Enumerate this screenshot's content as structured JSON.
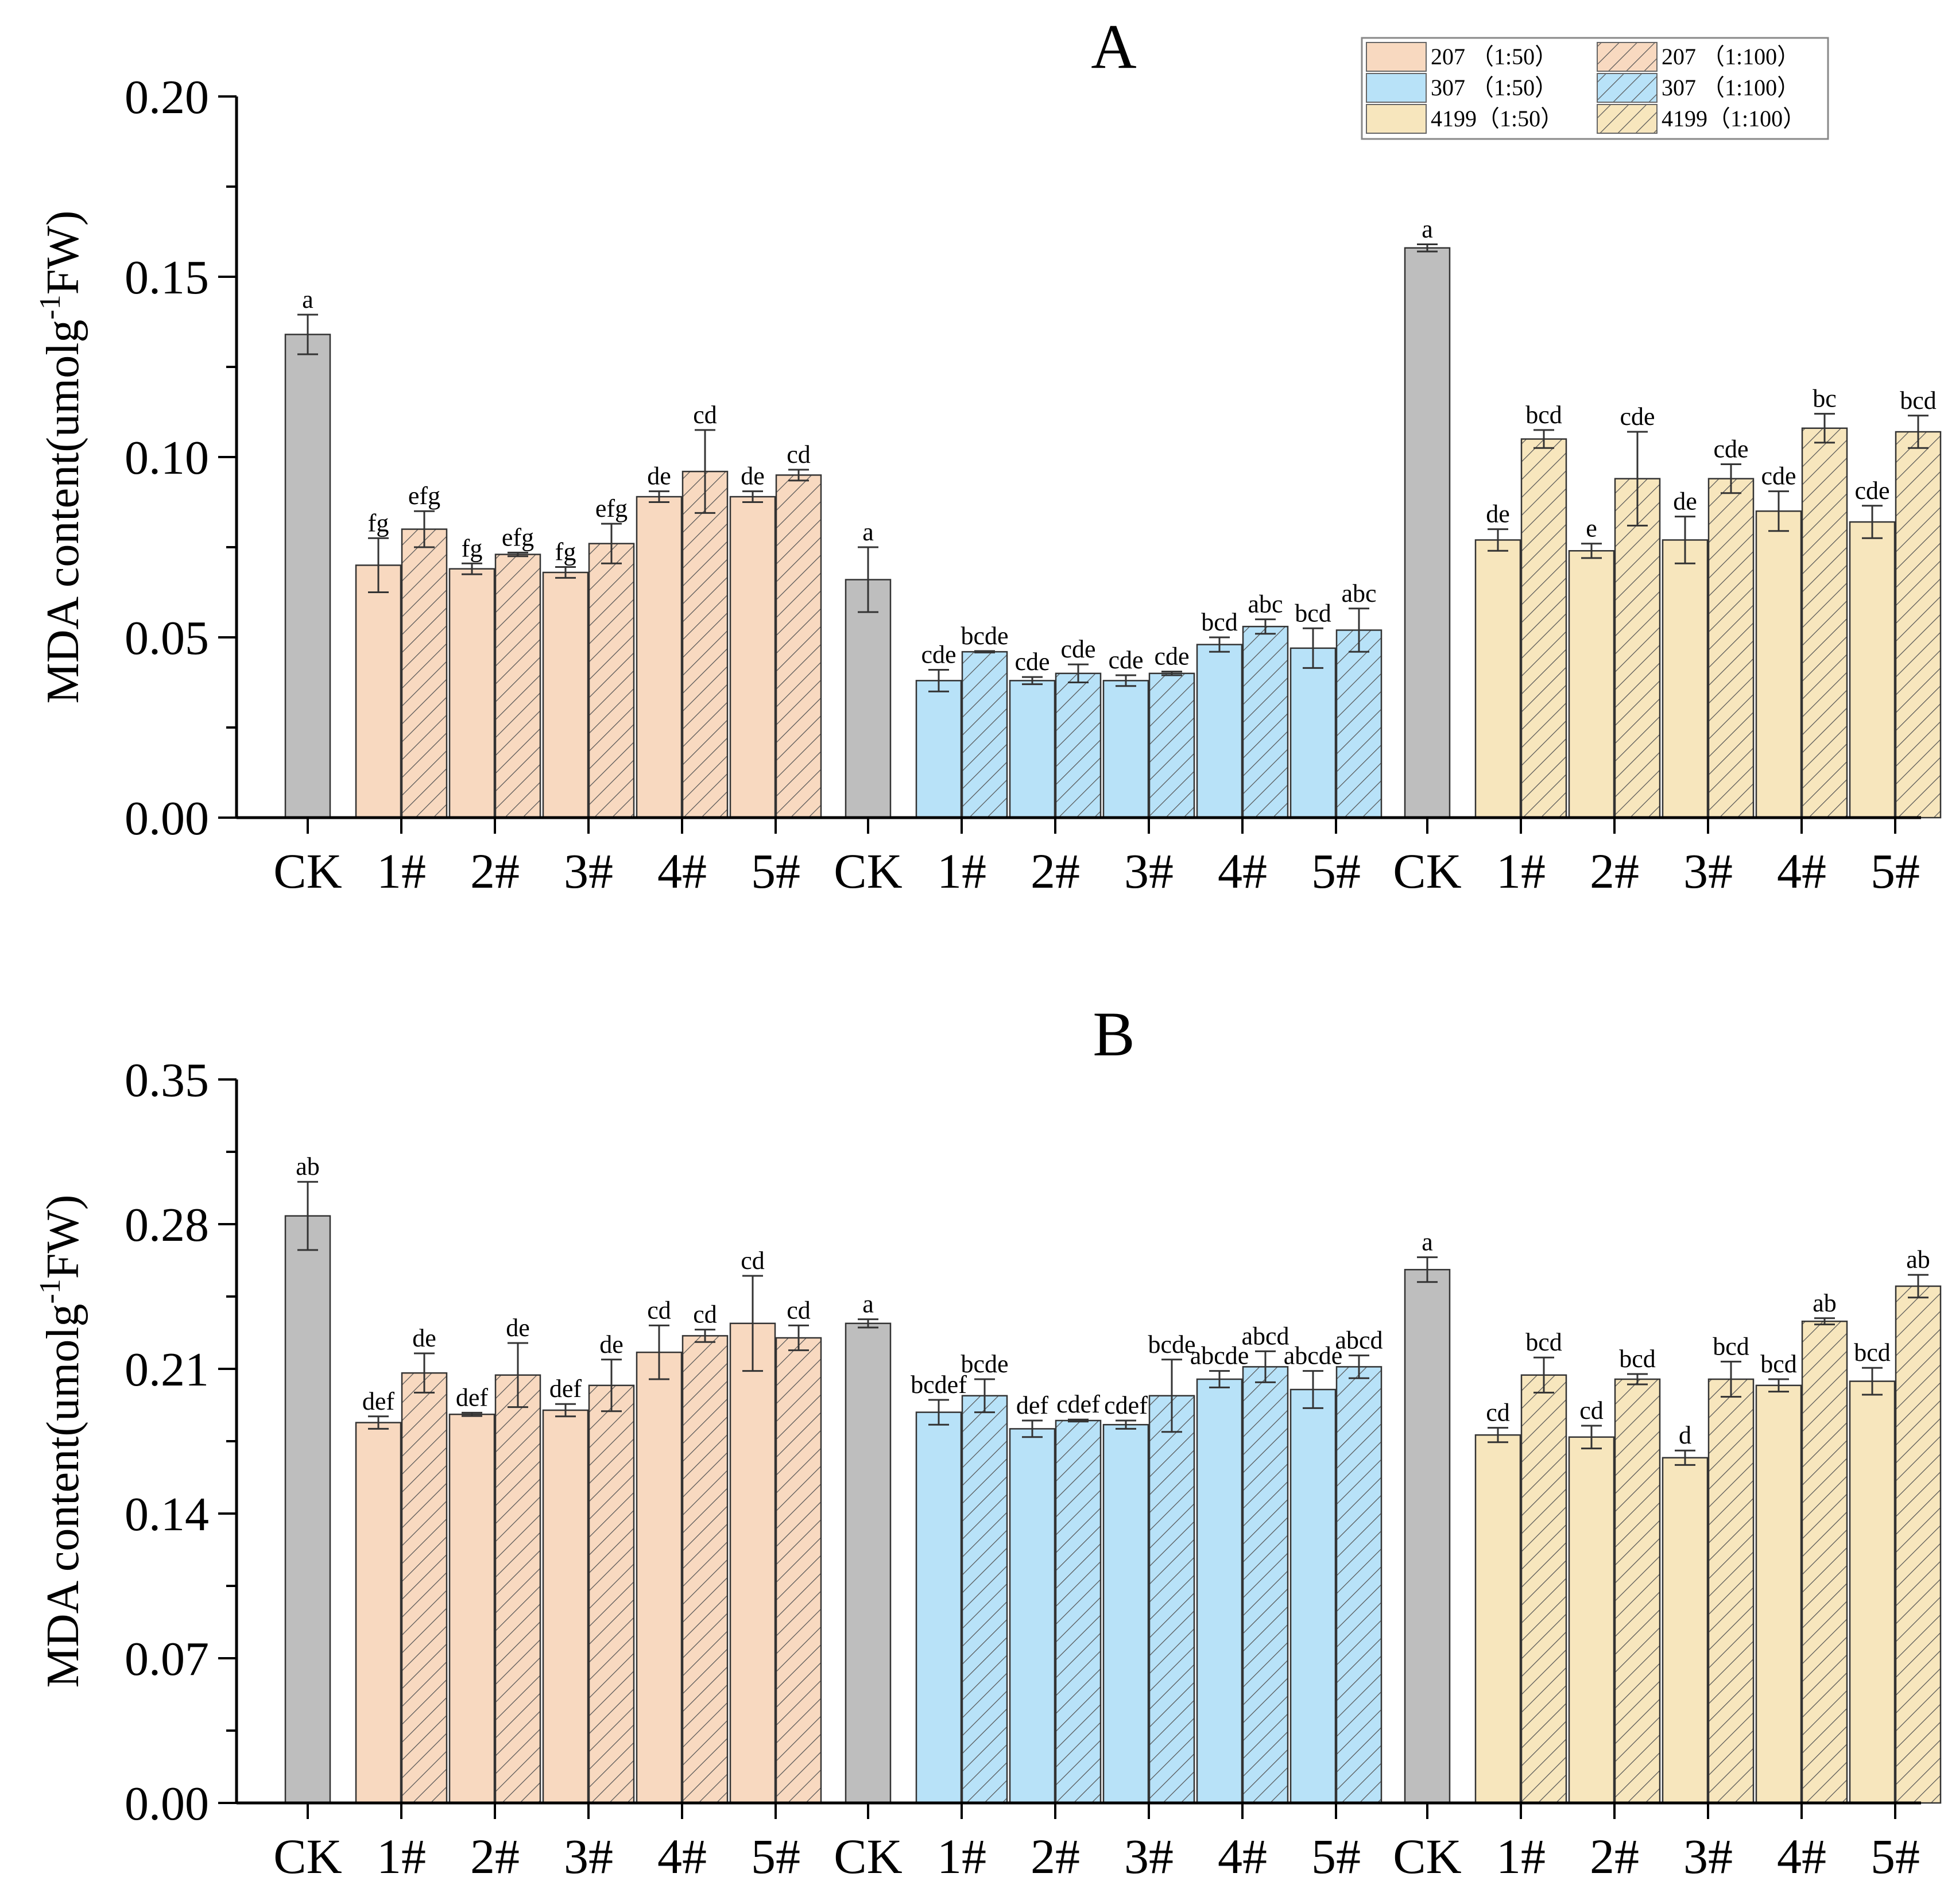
{
  "colors": {
    "ck": "#bebebe",
    "207": "#f8d9c0",
    "307": "#b8e2f8",
    "4199": "#f7e6bd",
    "hatch_line": "#555555",
    "bar_edge": "#333333"
  },
  "legend": {
    "items": [
      {
        "label": "207  （1:50）",
        "color": "207",
        "hatched": false
      },
      {
        "label": "207    （1:100）",
        "color": "207",
        "hatched": true
      },
      {
        "label": "307  （1:50）",
        "color": "307",
        "hatched": false
      },
      {
        "label": "307    （1:100）",
        "color": "307",
        "hatched": true
      },
      {
        "label": "4199（1:50）",
        "color": "4199",
        "hatched": false
      },
      {
        "label": "4199（1:100）",
        "color": "4199",
        "hatched": true
      }
    ]
  },
  "chart_data": [
    {
      "type": "bar",
      "title": "A",
      "ylabel_main": "MDA content(umolg",
      "ylabel_sup": "-1",
      "ylabel_end": "FW)",
      "ylim": [
        0,
        0.2
      ],
      "yticks": [
        "0.00",
        "0.05",
        "0.10",
        "0.15",
        "0.20"
      ],
      "categories": [
        "CK",
        "1#",
        "2#",
        "3#",
        "4#",
        "5#"
      ],
      "groups": [
        {
          "name": "207",
          "color": "207",
          "ck": {
            "value": 0.134,
            "err": 0.0055,
            "label": "a"
          },
          "low": [
            {
              "value": 0.07,
              "err": 0.0075,
              "label": "fg"
            },
            {
              "value": 0.069,
              "err": 0.0015,
              "label": "fg"
            },
            {
              "value": 0.068,
              "err": 0.0015,
              "label": "fg"
            },
            {
              "value": 0.089,
              "err": 0.0015,
              "label": "de"
            },
            {
              "value": 0.089,
              "err": 0.0015,
              "label": "de"
            }
          ],
          "high": [
            {
              "value": 0.08,
              "err": 0.005,
              "label": "efg"
            },
            {
              "value": 0.073,
              "err": 0.0005,
              "label": "efg"
            },
            {
              "value": 0.076,
              "err": 0.0055,
              "label": "efg"
            },
            {
              "value": 0.096,
              "err": 0.0115,
              "label": "cd"
            },
            {
              "value": 0.095,
              "err": 0.0015,
              "label": "cd"
            }
          ]
        },
        {
          "name": "307",
          "color": "307",
          "ck": {
            "value": 0.066,
            "err": 0.009,
            "label": "a"
          },
          "low": [
            {
              "value": 0.038,
              "err": 0.003,
              "label": "cde"
            },
            {
              "value": 0.038,
              "err": 0.001,
              "label": "cde"
            },
            {
              "value": 0.038,
              "err": 0.0015,
              "label": "cde"
            },
            {
              "value": 0.048,
              "err": 0.002,
              "label": "bcd"
            },
            {
              "value": 0.047,
              "err": 0.0055,
              "label": "bcd"
            }
          ],
          "high": [
            {
              "value": 0.046,
              "err": 0.0002,
              "label": "bcde"
            },
            {
              "value": 0.04,
              "err": 0.0025,
              "label": "cde"
            },
            {
              "value": 0.04,
              "err": 0.0005,
              "label": "cde"
            },
            {
              "value": 0.053,
              "err": 0.002,
              "label": "abc"
            },
            {
              "value": 0.052,
              "err": 0.006,
              "label": "abc"
            }
          ]
        },
        {
          "name": "4199",
          "color": "4199",
          "ck": {
            "value": 0.158,
            "err": 0.001,
            "label": "a"
          },
          "low": [
            {
              "value": 0.077,
              "err": 0.003,
              "label": "de"
            },
            {
              "value": 0.074,
              "err": 0.002,
              "label": "e"
            },
            {
              "value": 0.077,
              "err": 0.0065,
              "label": "de"
            },
            {
              "value": 0.085,
              "err": 0.0055,
              "label": "cde"
            },
            {
              "value": 0.082,
              "err": 0.0045,
              "label": "cde"
            }
          ],
          "high": [
            {
              "value": 0.105,
              "err": 0.0025,
              "label": "bcd"
            },
            {
              "value": 0.094,
              "err": 0.013,
              "label": "cde"
            },
            {
              "value": 0.094,
              "err": 0.004,
              "label": "cde"
            },
            {
              "value": 0.108,
              "err": 0.004,
              "label": "bc"
            },
            {
              "value": 0.107,
              "err": 0.0045,
              "label": "bcd"
            }
          ]
        }
      ]
    },
    {
      "type": "bar",
      "title": "B",
      "ylabel_main": "MDA content(umolg",
      "ylabel_sup": "-1",
      "ylabel_end": "FW)",
      "ylim": [
        0,
        0.35
      ],
      "yticks": [
        "0.00",
        "0.07",
        "0.14",
        "0.21",
        "0.28",
        "0.35"
      ],
      "categories": [
        "CK",
        "1#",
        "2#",
        "3#",
        "4#",
        "5#"
      ],
      "groups": [
        {
          "name": "207",
          "color": "207",
          "ck": {
            "value": 0.284,
            "err": 0.0165,
            "label": "ab"
          },
          "low": [
            {
              "value": 0.184,
              "err": 0.003,
              "label": "def"
            },
            {
              "value": 0.188,
              "err": 0.0008,
              "label": "def"
            },
            {
              "value": 0.19,
              "err": 0.003,
              "label": "def"
            },
            {
              "value": 0.218,
              "err": 0.013,
              "label": "cd"
            },
            {
              "value": 0.232,
              "err": 0.023,
              "label": "cd"
            }
          ],
          "high": [
            {
              "value": 0.208,
              "err": 0.0095,
              "label": "de"
            },
            {
              "value": 0.207,
              "err": 0.0155,
              "label": "de"
            },
            {
              "value": 0.202,
              "err": 0.0125,
              "label": "de"
            },
            {
              "value": 0.226,
              "err": 0.003,
              "label": "cd"
            },
            {
              "value": 0.225,
              "err": 0.006,
              "label": "cd"
            }
          ]
        },
        {
          "name": "307",
          "color": "307",
          "ck": {
            "value": 0.232,
            "err": 0.002,
            "label": "a"
          },
          "low": [
            {
              "value": 0.189,
              "err": 0.006,
              "label": "bcdef"
            },
            {
              "value": 0.181,
              "err": 0.004,
              "label": "def"
            },
            {
              "value": 0.183,
              "err": 0.002,
              "label": "cdef"
            },
            {
              "value": 0.205,
              "err": 0.004,
              "label": "abcde"
            },
            {
              "value": 0.2,
              "err": 0.009,
              "label": "abcde"
            }
          ],
          "high": [
            {
              "value": 0.197,
              "err": 0.008,
              "label": "bcde"
            },
            {
              "value": 0.185,
              "err": 0.0005,
              "label": "cdef"
            },
            {
              "value": 0.197,
              "err": 0.0175,
              "label": "bcde"
            },
            {
              "value": 0.211,
              "err": 0.0075,
              "label": "abcd"
            },
            {
              "value": 0.211,
              "err": 0.0055,
              "label": "abcd"
            }
          ]
        },
        {
          "name": "4199",
          "color": "4199",
          "ck": {
            "value": 0.258,
            "err": 0.006,
            "label": "a"
          },
          "low": [
            {
              "value": 0.178,
              "err": 0.0035,
              "label": "cd"
            },
            {
              "value": 0.177,
              "err": 0.0055,
              "label": "cd"
            },
            {
              "value": 0.167,
              "err": 0.0035,
              "label": "d"
            },
            {
              "value": 0.202,
              "err": 0.003,
              "label": "bcd"
            },
            {
              "value": 0.204,
              "err": 0.0065,
              "label": "bcd"
            }
          ],
          "high": [
            {
              "value": 0.207,
              "err": 0.0085,
              "label": "bcd"
            },
            {
              "value": 0.205,
              "err": 0.0025,
              "label": "bcd"
            },
            {
              "value": 0.205,
              "err": 0.0085,
              "label": "bcd"
            },
            {
              "value": 0.233,
              "err": 0.0015,
              "label": "ab"
            },
            {
              "value": 0.25,
              "err": 0.0055,
              "label": "ab"
            }
          ]
        }
      ]
    }
  ]
}
